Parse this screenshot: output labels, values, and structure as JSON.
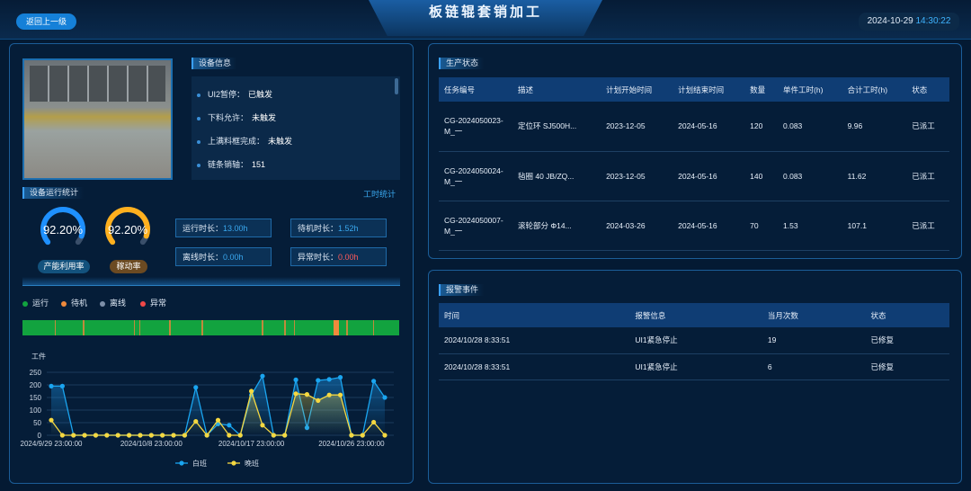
{
  "header": {
    "title": "板链辊套销加工",
    "back_label": "返回上一级",
    "date": "2024-10-29",
    "time": "14:30:22"
  },
  "device_info": {
    "title": "设备信息",
    "items": [
      {
        "label": "UI2暂停：",
        "value": "已触发"
      },
      {
        "label": "下料允许：",
        "value": "未触发"
      },
      {
        "label": "上满料框完成：",
        "value": "未触发"
      },
      {
        "label": "链条销轴：",
        "value": "151"
      }
    ]
  },
  "run_stats": {
    "title": "设备运行统计",
    "link": "工时统计",
    "gauges": [
      {
        "value": "92.20%",
        "pct": 92.2,
        "label": "产能利用率",
        "color": "#1e90ff"
      },
      {
        "value": "92.20%",
        "pct": 92.2,
        "label": "稼动率",
        "color": "#ffb01e"
      }
    ],
    "stats": [
      {
        "label": "运行时长：",
        "value": "13.00h"
      },
      {
        "label": "待机时长：",
        "value": "1.52h"
      },
      {
        "label": "离线时长：",
        "value": "0.00h"
      },
      {
        "label": "异常时长：",
        "value": "0.00h",
        "alert": true
      }
    ]
  },
  "timeline": {
    "legend": [
      {
        "label": "运行",
        "color": "#12a33f"
      },
      {
        "label": "待机",
        "color": "#f08a3c"
      },
      {
        "label": "离线",
        "color": "#7d8fa8"
      },
      {
        "label": "异常",
        "color": "#f04848"
      }
    ],
    "markers_pct": [
      8.5,
      16,
      29.5,
      31,
      39,
      47.5,
      63.5,
      69.5,
      72,
      86,
      93
    ],
    "standby_block_pct": [
      82.5,
      84
    ]
  },
  "chart_data": {
    "type": "line",
    "ylabel": "工件",
    "ylim": [
      0,
      250
    ],
    "yticks": [
      0,
      50,
      100,
      150,
      200,
      250
    ],
    "x": [
      "2024/9/29 23:00:00",
      "2024/9/30 23:00:00",
      "2024/10/1 23:00:00",
      "2024/10/2 23:00:00",
      "2024/10/3 23:00:00",
      "2024/10/4 23:00:00",
      "2024/10/5 23:00:00",
      "2024/10/6 23:00:00",
      "2024/10/7 23:00:00",
      "2024/10/8 23:00:00",
      "2024/10/9 23:00:00",
      "2024/10/10 23:00:00",
      "2024/10/11 23:00:00",
      "2024/10/12 23:00:00",
      "2024/10/13 23:00:00",
      "2024/10/14 23:00:00",
      "2024/10/15 23:00:00",
      "2024/10/16 23:00:00",
      "2024/10/17 23:00:00",
      "2024/10/18 23:00:00",
      "2024/10/19 23:00:00",
      "2024/10/20 23:00:00",
      "2024/10/21 23:00:00",
      "2024/10/22 23:00:00",
      "2024/10/23 23:00:00",
      "2024/10/24 23:00:00",
      "2024/10/25 23:00:00",
      "2024/10/26 23:00:00",
      "2024/10/27 23:00:00",
      "2024/10/28 23:00:00",
      "2024/10/29 23:00:00"
    ],
    "xtick_labels": [
      "2024/9/29 23:00:00",
      "2024/10/8 23:00:00",
      "2024/10/17 23:00:00",
      "2024/10/26 23:00:00"
    ],
    "series": [
      {
        "name": "白班",
        "color": "#1aa5f0",
        "values": [
          195,
          195,
          0,
          0,
          0,
          0,
          0,
          0,
          0,
          0,
          0,
          0,
          0,
          190,
          0,
          45,
          40,
          0,
          160,
          235,
          0,
          0,
          220,
          30,
          218,
          222,
          230,
          0,
          0,
          215,
          150
        ]
      },
      {
        "name": "晚班",
        "color": "#f5d841",
        "values": [
          60,
          0,
          0,
          0,
          0,
          0,
          0,
          0,
          0,
          0,
          0,
          0,
          0,
          55,
          0,
          60,
          0,
          0,
          175,
          40,
          0,
          0,
          165,
          162,
          138,
          160,
          160,
          0,
          0,
          52,
          0
        ]
      }
    ],
    "legend": "bottom",
    "grid": true
  },
  "production": {
    "title": "生产状态",
    "columns": [
      "任务编号",
      "描述",
      "计划开始时间",
      "计划结束时间",
      "数量",
      "单件工时(h)",
      "合计工时(h)",
      "状态"
    ],
    "rows": [
      [
        "CG-2024050023-M_一",
        "定位环 SJ500H...",
        "2023-12-05",
        "2024-05-16",
        "120",
        "0.083",
        "9.96",
        "已派工"
      ],
      [
        "CG-2024050024-M_一",
        "毡圈 40 JB/ZQ...",
        "2023-12-05",
        "2024-05-16",
        "140",
        "0.083",
        "11.62",
        "已派工"
      ],
      [
        "CG-2024050007-M_一",
        "滚轮部分 Φ14...",
        "2024-03-26",
        "2024-05-16",
        "70",
        "1.53",
        "107.1",
        "已派工"
      ]
    ]
  },
  "alarms": {
    "title": "报警事件",
    "columns": [
      "时间",
      "报警信息",
      "当月次数",
      "状态"
    ],
    "rows": [
      [
        "2024/10/28 8:33:51",
        "UI1紧急停止",
        "19",
        "已修复"
      ],
      [
        "2024/10/28 8:33:51",
        "UI1紧急停止",
        "6",
        "已修复"
      ]
    ]
  }
}
